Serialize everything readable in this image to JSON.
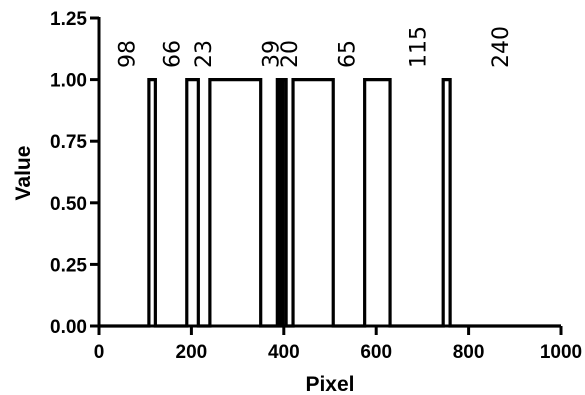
{
  "chart_data": {
    "type": "line",
    "title": "",
    "xlabel": "Pixel",
    "ylabel": "Value",
    "xlim": [
      0,
      1000
    ],
    "ylim": [
      0,
      1.25
    ],
    "x_ticks": [
      0,
      200,
      400,
      600,
      800,
      1000
    ],
    "y_ticks": [
      0.0,
      0.25,
      0.5,
      0.75,
      1.0,
      1.25
    ],
    "y_tick_labels": [
      "0.00",
      "0.25",
      "0.50",
      "0.75",
      "1.00",
      "1.25"
    ],
    "x_tick_labels": [
      "0",
      "200",
      "400",
      "600",
      "800",
      "1000"
    ],
    "grid": false,
    "legend": "none",
    "series": [
      {
        "pulses": [
          [
            108,
            122
          ],
          [
            190,
            215
          ],
          [
            240,
            350
          ],
          [
            386,
            392
          ],
          [
            398,
            405
          ],
          [
            420,
            507
          ],
          [
            575,
            630
          ],
          [
            745,
            760
          ]
        ]
      }
    ],
    "annotations": [
      {
        "text": "98",
        "x": 62
      },
      {
        "text": "66",
        "x": 159
      },
      {
        "text": "23",
        "x": 227
      },
      {
        "text": "39",
        "x": 373
      },
      {
        "text": "20",
        "x": 413
      },
      {
        "text": "65",
        "x": 538
      },
      {
        "text": "115",
        "x": 692
      },
      {
        "text": "240",
        "x": 870
      }
    ]
  }
}
